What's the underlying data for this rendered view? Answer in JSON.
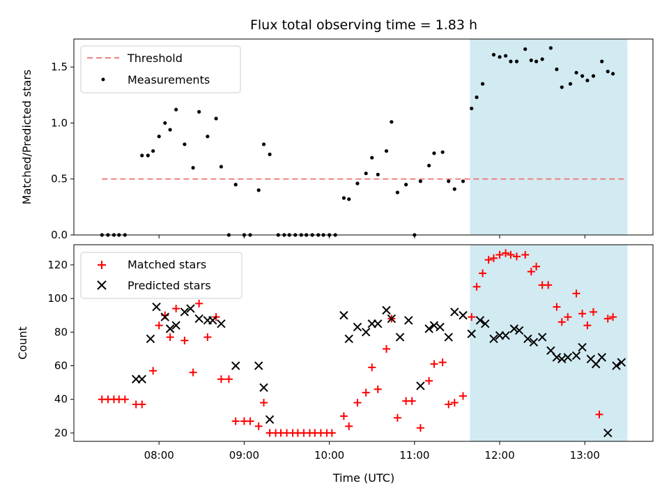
{
  "chart_data": {
    "type": "scatter",
    "title": "Flux total observing time = 1.83 h",
    "xlabel": "Time (UTC)",
    "x_tick_labels": [
      "08:00",
      "09:00",
      "10:00",
      "11:00",
      "12:00",
      "13:00"
    ],
    "x_ticks_hours": [
      8,
      9,
      10,
      11,
      12,
      13
    ],
    "xlim_hours": [
      7.0,
      13.8
    ],
    "shaded_interval_hours": [
      11.65,
      13.5
    ],
    "shade_color": "#add8e6",
    "panels": [
      {
        "ylabel": "Matched/Predicted stars",
        "ylim": [
          0,
          1.75
        ],
        "y_ticks": [
          0.0,
          0.5,
          1.0,
          1.5
        ],
        "y_tick_labels": [
          "0.0",
          "0.5",
          "1.0",
          "1.5"
        ],
        "legend_position": "top-left",
        "threshold": {
          "name": "Threshold",
          "value": 0.5,
          "color": "#f08080"
        },
        "series": [
          {
            "name": "Measurements",
            "marker": "dot",
            "color": "#000000",
            "points": [
              [
                7.33,
                0
              ],
              [
                7.4,
                0
              ],
              [
                7.47,
                0
              ],
              [
                7.53,
                0
              ],
              [
                7.6,
                0
              ],
              [
                7.8,
                0.71
              ],
              [
                7.87,
                0.71
              ],
              [
                7.93,
                0.75
              ],
              [
                8.0,
                0.88
              ],
              [
                8.07,
                1.0
              ],
              [
                8.13,
                0.94
              ],
              [
                8.2,
                1.12
              ],
              [
                8.3,
                0.81
              ],
              [
                8.4,
                0.6
              ],
              [
                8.47,
                1.1
              ],
              [
                8.57,
                0.88
              ],
              [
                8.67,
                1.04
              ],
              [
                8.73,
                0.61
              ],
              [
                8.82,
                0
              ],
              [
                8.9,
                0.45
              ],
              [
                9.0,
                0
              ],
              [
                9.07,
                0
              ],
              [
                9.17,
                0.4
              ],
              [
                9.23,
                0.81
              ],
              [
                9.3,
                0.72
              ],
              [
                9.4,
                0
              ],
              [
                9.47,
                0
              ],
              [
                9.53,
                0
              ],
              [
                9.6,
                0
              ],
              [
                9.67,
                0
              ],
              [
                9.73,
                0
              ],
              [
                9.8,
                0
              ],
              [
                9.87,
                0
              ],
              [
                9.93,
                0
              ],
              [
                10.0,
                0
              ],
              [
                10.07,
                0
              ],
              [
                10.17,
                0.33
              ],
              [
                10.23,
                0.32
              ],
              [
                10.33,
                0.46
              ],
              [
                10.43,
                0.55
              ],
              [
                10.5,
                0.69
              ],
              [
                10.57,
                0.54
              ],
              [
                10.67,
                0.75
              ],
              [
                10.73,
                1.01
              ],
              [
                10.8,
                0.38
              ],
              [
                10.9,
                0.45
              ],
              [
                11.0,
                0
              ],
              [
                11.07,
                0.48
              ],
              [
                11.17,
                0.62
              ],
              [
                11.23,
                0.73
              ],
              [
                11.33,
                0.74
              ],
              [
                11.4,
                0.48
              ],
              [
                11.47,
                0.41
              ],
              [
                11.57,
                0.48
              ],
              [
                11.67,
                1.13
              ],
              [
                11.73,
                1.23
              ],
              [
                11.8,
                1.35
              ],
              [
                11.93,
                1.61
              ],
              [
                12.0,
                1.59
              ],
              [
                12.07,
                1.6
              ],
              [
                12.13,
                1.55
              ],
              [
                12.2,
                1.55
              ],
              [
                12.3,
                1.66
              ],
              [
                12.37,
                1.56
              ],
              [
                12.43,
                1.55
              ],
              [
                12.5,
                1.57
              ],
              [
                12.6,
                1.67
              ],
              [
                12.67,
                1.48
              ],
              [
                12.73,
                1.32
              ],
              [
                12.83,
                1.35
              ],
              [
                12.9,
                1.45
              ],
              [
                12.97,
                1.42
              ],
              [
                13.03,
                1.38
              ],
              [
                13.1,
                1.42
              ],
              [
                13.2,
                1.55
              ],
              [
                13.27,
                1.46
              ],
              [
                13.33,
                1.44
              ]
            ]
          }
        ]
      },
      {
        "ylabel": "Count",
        "ylim": [
          15,
          132
        ],
        "y_ticks": [
          20,
          40,
          60,
          80,
          100,
          120
        ],
        "y_tick_labels": [
          "20",
          "40",
          "60",
          "80",
          "100",
          "120"
        ],
        "legend_position": "top-left",
        "series": [
          {
            "name": "Matched stars",
            "marker": "plus",
            "color": "#ff0000",
            "points": [
              [
                7.33,
                40
              ],
              [
                7.4,
                40
              ],
              [
                7.47,
                40
              ],
              [
                7.53,
                40
              ],
              [
                7.6,
                40
              ],
              [
                7.73,
                37
              ],
              [
                7.8,
                37
              ],
              [
                7.93,
                57
              ],
              [
                8.0,
                84
              ],
              [
                8.07,
                90
              ],
              [
                8.13,
                77
              ],
              [
                8.2,
                94
              ],
              [
                8.3,
                75
              ],
              [
                8.4,
                56
              ],
              [
                8.47,
                97
              ],
              [
                8.57,
                77
              ],
              [
                8.67,
                89
              ],
              [
                8.73,
                52
              ],
              [
                8.82,
                52
              ],
              [
                8.9,
                27
              ],
              [
                9.0,
                27
              ],
              [
                9.07,
                27
              ],
              [
                9.17,
                24
              ],
              [
                9.23,
                38
              ],
              [
                9.3,
                20
              ],
              [
                9.37,
                20
              ],
              [
                9.43,
                20
              ],
              [
                9.5,
                20
              ],
              [
                9.57,
                20
              ],
              [
                9.63,
                20
              ],
              [
                9.7,
                20
              ],
              [
                9.77,
                20
              ],
              [
                9.83,
                20
              ],
              [
                9.9,
                20
              ],
              [
                9.97,
                20
              ],
              [
                10.03,
                20
              ],
              [
                10.17,
                30
              ],
              [
                10.23,
                24
              ],
              [
                10.33,
                38
              ],
              [
                10.43,
                44
              ],
              [
                10.5,
                59
              ],
              [
                10.57,
                46
              ],
              [
                10.67,
                70
              ],
              [
                10.73,
                88
              ],
              [
                10.8,
                29
              ],
              [
                10.9,
                39
              ],
              [
                10.97,
                39
              ],
              [
                11.07,
                23
              ],
              [
                11.17,
                51
              ],
              [
                11.23,
                61
              ],
              [
                11.33,
                62
              ],
              [
                11.4,
                37
              ],
              [
                11.47,
                38
              ],
              [
                11.57,
                42
              ],
              [
                11.67,
                89
              ],
              [
                11.73,
                107
              ],
              [
                11.8,
                115
              ],
              [
                11.87,
                123
              ],
              [
                11.93,
                124
              ],
              [
                12.0,
                126
              ],
              [
                12.07,
                127
              ],
              [
                12.13,
                126
              ],
              [
                12.2,
                125
              ],
              [
                12.3,
                126
              ],
              [
                12.37,
                116
              ],
              [
                12.43,
                119
              ],
              [
                12.5,
                108
              ],
              [
                12.57,
                108
              ],
              [
                12.67,
                95
              ],
              [
                12.73,
                86
              ],
              [
                12.8,
                89
              ],
              [
                12.9,
                103
              ],
              [
                12.97,
                91
              ],
              [
                13.03,
                84
              ],
              [
                13.1,
                92
              ],
              [
                13.17,
                31
              ],
              [
                13.27,
                88
              ],
              [
                13.33,
                89
              ]
            ]
          },
          {
            "name": "Predicted stars",
            "marker": "x",
            "color": "#000000",
            "points": [
              [
                7.73,
                52
              ],
              [
                7.8,
                52
              ],
              [
                7.9,
                76
              ],
              [
                7.97,
                95
              ],
              [
                8.07,
                89
              ],
              [
                8.13,
                82
              ],
              [
                8.2,
                84
              ],
              [
                8.3,
                92
              ],
              [
                8.37,
                94
              ],
              [
                8.47,
                88
              ],
              [
                8.57,
                87
              ],
              [
                8.63,
                87
              ],
              [
                8.73,
                85
              ],
              [
                8.9,
                60
              ],
              [
                9.17,
                60
              ],
              [
                9.23,
                47
              ],
              [
                9.3,
                28
              ],
              [
                10.17,
                90
              ],
              [
                10.23,
                76
              ],
              [
                10.33,
                83
              ],
              [
                10.43,
                80
              ],
              [
                10.5,
                85
              ],
              [
                10.57,
                85
              ],
              [
                10.67,
                93
              ],
              [
                10.73,
                88
              ],
              [
                10.83,
                77
              ],
              [
                10.93,
                87
              ],
              [
                11.07,
                48
              ],
              [
                11.17,
                82
              ],
              [
                11.23,
                84
              ],
              [
                11.3,
                83
              ],
              [
                11.4,
                77
              ],
              [
                11.47,
                92
              ],
              [
                11.57,
                90
              ],
              [
                11.67,
                79
              ],
              [
                11.77,
                87
              ],
              [
                11.83,
                85
              ],
              [
                11.93,
                76
              ],
              [
                12.0,
                78
              ],
              [
                12.07,
                78
              ],
              [
                12.17,
                82
              ],
              [
                12.23,
                81
              ],
              [
                12.33,
                76
              ],
              [
                12.4,
                74
              ],
              [
                12.5,
                77
              ],
              [
                12.6,
                69
              ],
              [
                12.67,
                65
              ],
              [
                12.73,
                64
              ],
              [
                12.8,
                65
              ],
              [
                12.9,
                66
              ],
              [
                12.97,
                71
              ],
              [
                13.07,
                64
              ],
              [
                13.13,
                61
              ],
              [
                13.2,
                65
              ],
              [
                13.27,
                20
              ],
              [
                13.37,
                60
              ],
              [
                13.43,
                62
              ]
            ]
          }
        ]
      }
    ]
  }
}
